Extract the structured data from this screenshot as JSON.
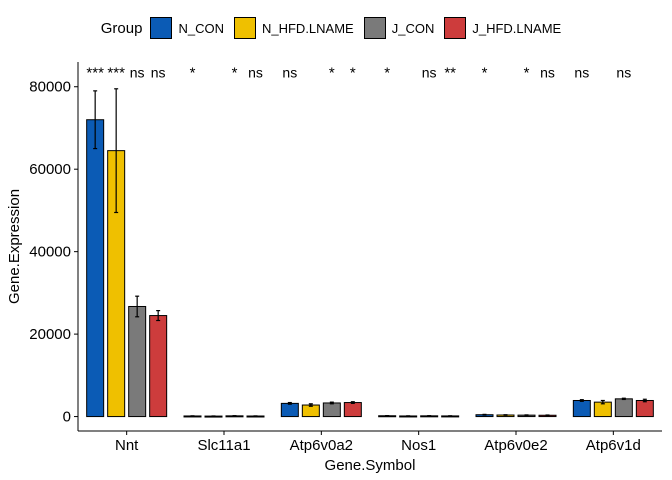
{
  "legend": {
    "title": "Group",
    "items": [
      {
        "label": "N_CON",
        "color": "#0B5BB5"
      },
      {
        "label": "N_HFD.LNAME",
        "color": "#EFC000"
      },
      {
        "label": "J_CON",
        "color": "#7A7A7A"
      },
      {
        "label": "J_HFD.LNAME",
        "color": "#CD3C3C"
      }
    ]
  },
  "chart_data": {
    "type": "bar",
    "categories": [
      "Nnt",
      "Slc11a1",
      "Atp6v0a2",
      "Nos1",
      "Atp6v0e2",
      "Atp6v1d"
    ],
    "series": [
      {
        "name": "N_CON",
        "color": "#0B5BB5",
        "values": [
          72000,
          150,
          3200,
          200,
          450,
          3900
        ],
        "errors": [
          7000,
          30,
          200,
          30,
          80,
          200
        ]
      },
      {
        "name": "N_HFD.LNAME",
        "color": "#EFC000",
        "values": [
          64500,
          120,
          2800,
          150,
          380,
          3500
        ],
        "errors": [
          15000,
          30,
          300,
          30,
          70,
          400
        ]
      },
      {
        "name": "J_CON",
        "color": "#7A7A7A",
        "values": [
          26700,
          180,
          3300,
          180,
          350,
          4300
        ],
        "errors": [
          2500,
          30,
          200,
          30,
          60,
          150
        ]
      },
      {
        "name": "J_HFD.LNAME",
        "color": "#CD3C3C",
        "values": [
          24500,
          140,
          3400,
          160,
          320,
          3900
        ],
        "errors": [
          1200,
          30,
          200,
          30,
          60,
          300
        ]
      }
    ],
    "significance": [
      [
        "***",
        "***",
        "ns",
        "ns"
      ],
      [
        "*",
        "",
        "*",
        "ns"
      ],
      [
        "ns",
        "",
        "*",
        "*"
      ],
      [
        "*",
        "",
        "ns",
        "**"
      ],
      [
        "*",
        "",
        "*",
        "ns"
      ],
      [
        "ns",
        "",
        "ns",
        ""
      ]
    ],
    "xlabel": "Gene.Symbol",
    "ylabel": "Gene.Expression",
    "ylim": [
      -3500,
      86000
    ],
    "yticks": [
      0,
      20000,
      40000,
      60000,
      80000
    ],
    "grid": false,
    "legend_position": "top"
  }
}
